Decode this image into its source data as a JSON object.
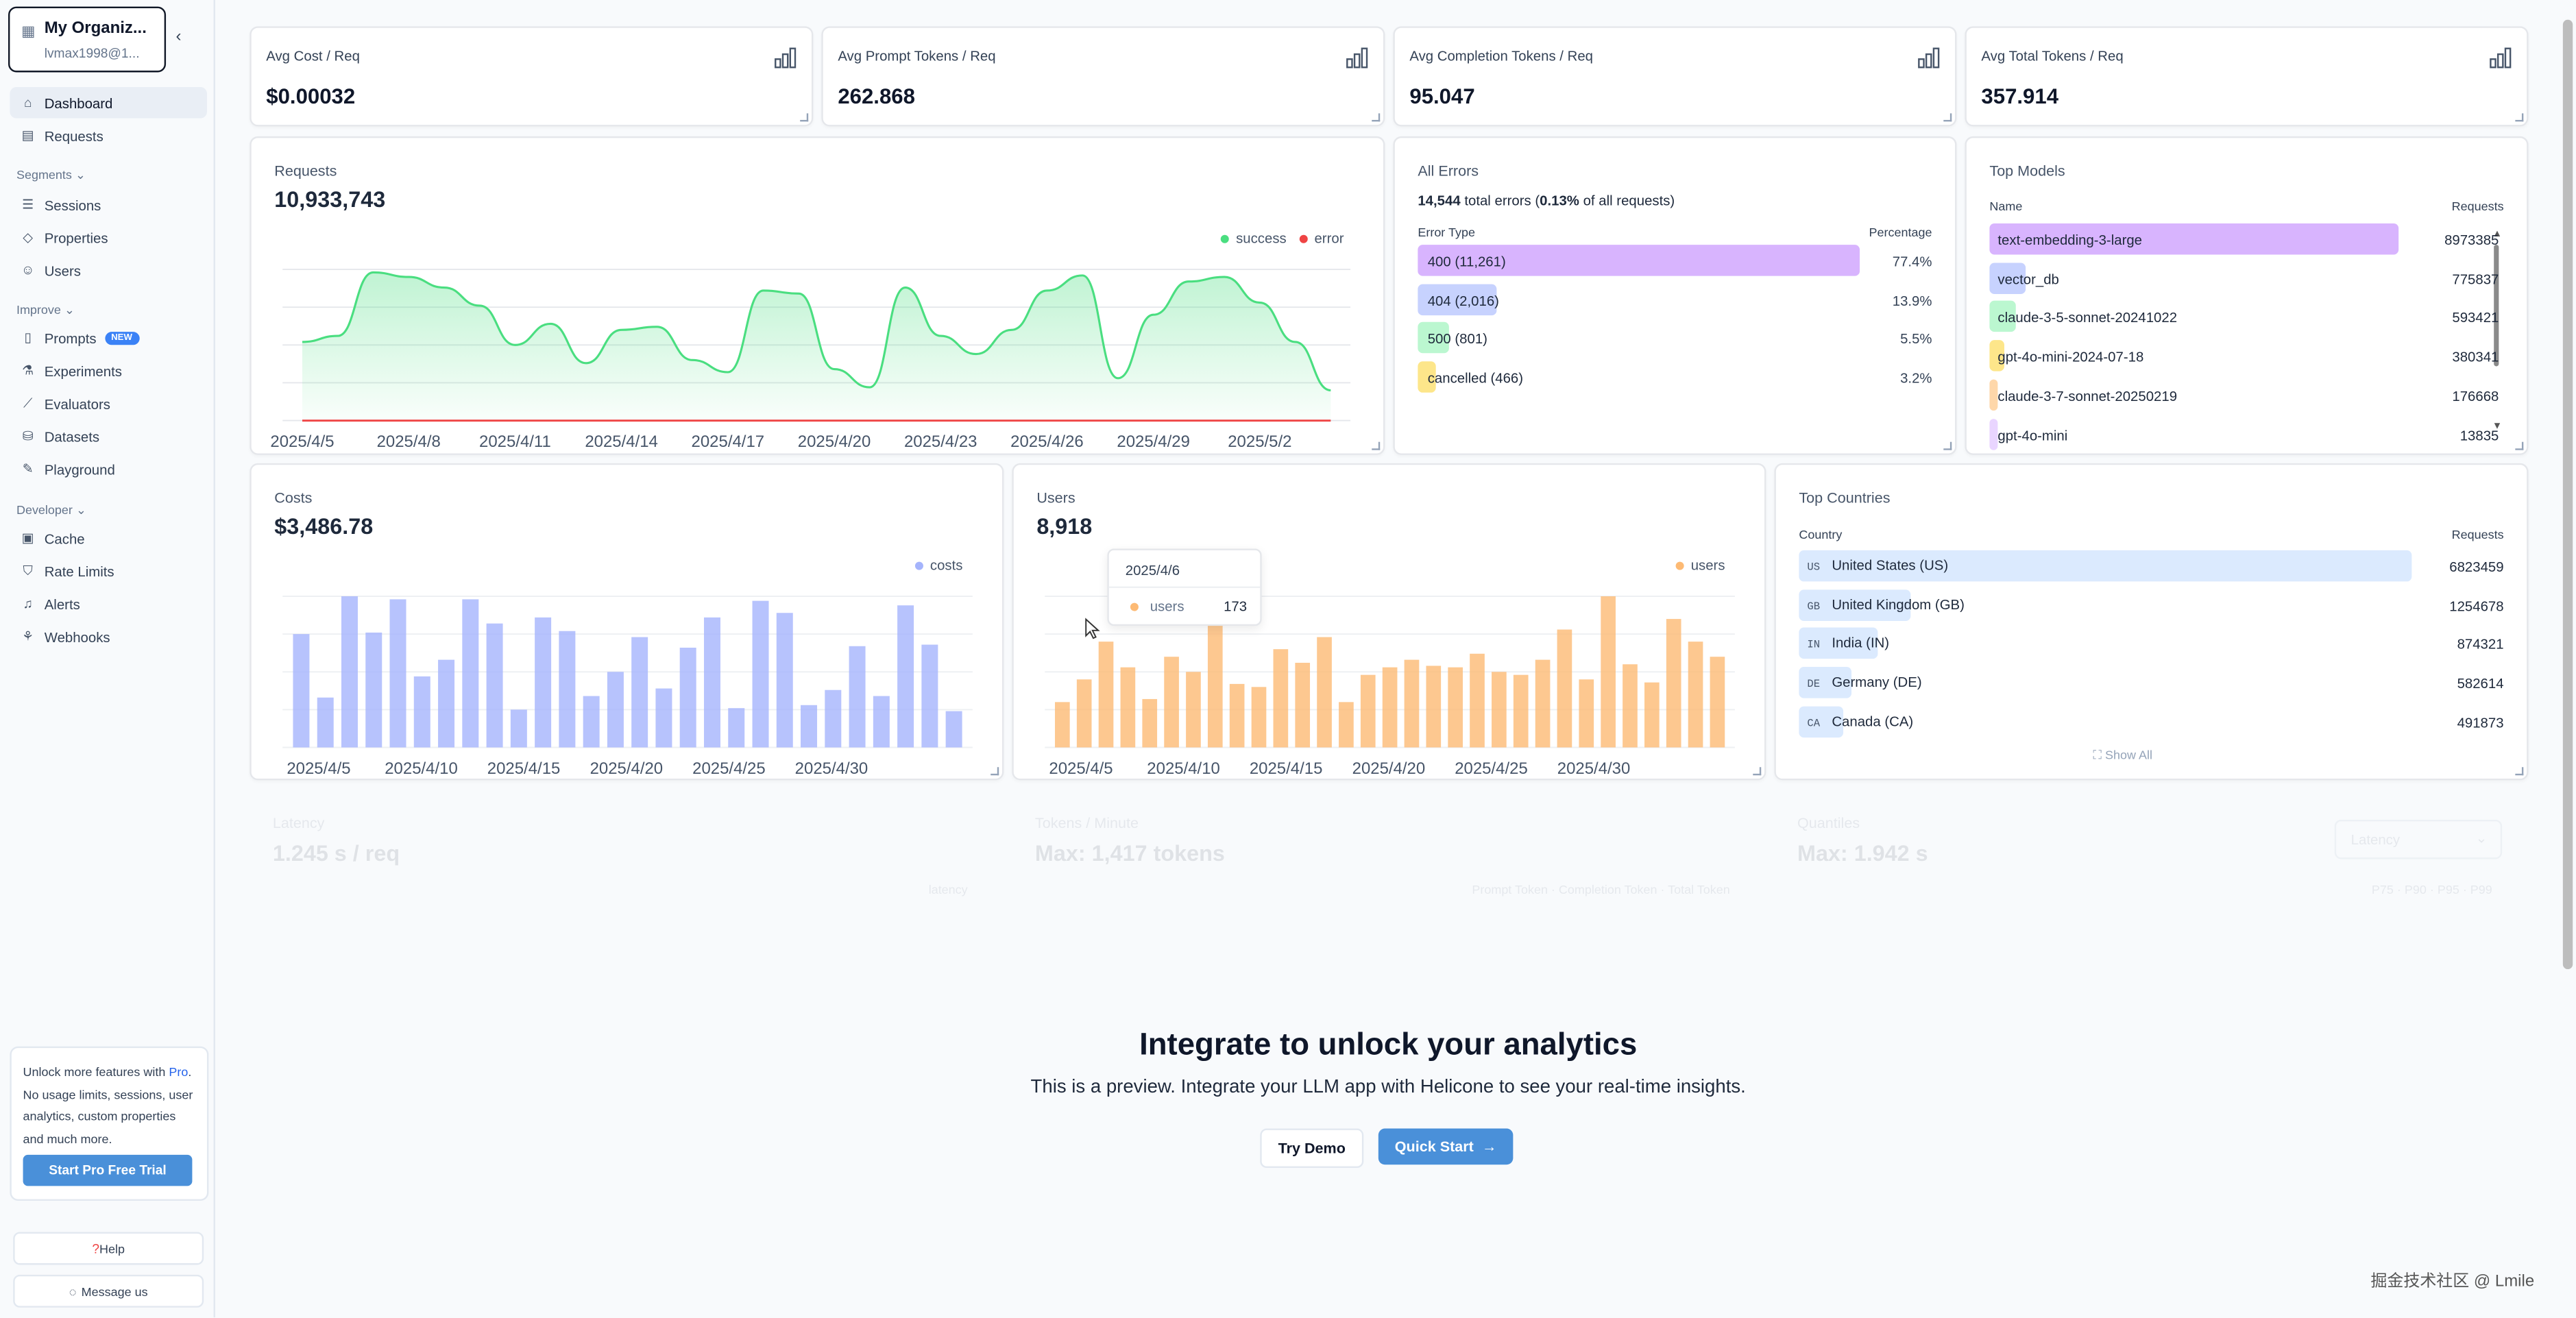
{
  "sidebar": {
    "org_name": "My Organiz...",
    "org_email": "lvmax1998@1...",
    "nav_top": [
      {
        "label": "Dashboard",
        "icon": "home-icon"
      },
      {
        "label": "Requests",
        "icon": "table-icon"
      }
    ],
    "segments_label": "Segments",
    "segments": [
      {
        "label": "Sessions",
        "icon": "list-icon"
      },
      {
        "label": "Properties",
        "icon": "tag-icon"
      },
      {
        "label": "Users",
        "icon": "user-icon"
      }
    ],
    "improve_label": "Improve",
    "improve": [
      {
        "label": "Prompts",
        "icon": "file-icon",
        "badge": "NEW"
      },
      {
        "label": "Experiments",
        "icon": "flask-icon"
      },
      {
        "label": "Evaluators",
        "icon": "chart-line-icon"
      },
      {
        "label": "Datasets",
        "icon": "database-icon"
      },
      {
        "label": "Playground",
        "icon": "pencil-icon"
      }
    ],
    "developer_label": "Developer",
    "developer": [
      {
        "label": "Cache",
        "icon": "archive-icon"
      },
      {
        "label": "Rate Limits",
        "icon": "shield-icon"
      },
      {
        "label": "Alerts",
        "icon": "bell-icon"
      },
      {
        "label": "Webhooks",
        "icon": "webhook-icon"
      }
    ],
    "promo_pre": "Unlock more features with ",
    "promo_link": "Pro",
    "promo_post": ". No usage limits, sessions, user analytics, custom properties and much more.",
    "promo_button": "Start Pro Free Trial",
    "help": "Help",
    "message": "Message us"
  },
  "stats": [
    {
      "label": "Avg Cost / Req",
      "value": "$0.00032"
    },
    {
      "label": "Avg Prompt Tokens / Req",
      "value": "262.868"
    },
    {
      "label": "Avg Completion Tokens / Req",
      "value": "95.047"
    },
    {
      "label": "Avg Total Tokens / Req",
      "value": "357.914"
    }
  ],
  "requests": {
    "title": "Requests",
    "value": "10,933,743",
    "legend_success": "success",
    "legend_error": "error"
  },
  "errors": {
    "title": "All Errors",
    "summary_count": "14,544",
    "summary_mid": " total errors (",
    "summary_pct": "0.13%",
    "summary_end": " of all requests)",
    "col_type": "Error Type",
    "col_pct": "Percentage",
    "rows": [
      {
        "label": "400 (11,261)",
        "pct": "77.4%",
        "color": "#d8b4fe"
      },
      {
        "label": "404 (2,016)",
        "pct": "13.9%",
        "color": "#c7d2fe"
      },
      {
        "label": "500 (801)",
        "pct": "5.5%",
        "color": "#bbf7d0"
      },
      {
        "label": "cancelled (466)",
        "pct": "3.2%",
        "color": "#fde68a"
      }
    ]
  },
  "models": {
    "title": "Top Models",
    "col_name": "Name",
    "col_req": "Requests",
    "rows": [
      {
        "name": "text-embedding-3-large",
        "value": "8973385",
        "color": "#d8b4fe"
      },
      {
        "name": "vector_db",
        "value": "775837",
        "color": "#c7d2fe"
      },
      {
        "name": "claude-3-5-sonnet-20241022",
        "value": "593421",
        "color": "#bbf7d0"
      },
      {
        "name": "gpt-4o-mini-2024-07-18",
        "value": "380341",
        "color": "#fde68a"
      },
      {
        "name": "claude-3-7-sonnet-20250219",
        "value": "176668",
        "color": "#fed7aa"
      },
      {
        "name": "gpt-4o-mini",
        "value": "13835",
        "color": "#e9d5ff"
      }
    ]
  },
  "costs": {
    "title": "Costs",
    "value": "$3,486.78",
    "legend": "costs"
  },
  "users": {
    "title": "Users",
    "value": "8,918",
    "legend": "users"
  },
  "tooltip": {
    "date": "2025/4/6",
    "label": "users",
    "value": "173"
  },
  "countries": {
    "title": "Top Countries",
    "col_country": "Country",
    "col_req": "Requests",
    "show_all": "Show All",
    "rows": [
      {
        "code": "US",
        "name": "United States (US)",
        "value": "6823459"
      },
      {
        "code": "GB",
        "name": "United Kingdom (GB)",
        "value": "1254678"
      },
      {
        "code": "IN",
        "name": "India (IN)",
        "value": "874321"
      },
      {
        "code": "DE",
        "name": "Germany (DE)",
        "value": "582614"
      },
      {
        "code": "CA",
        "name": "Canada (CA)",
        "value": "491873"
      }
    ]
  },
  "ghost": {
    "latency_title": "Latency",
    "latency_value": "1.245 s / req",
    "latency_legend": "latency",
    "tpm_title": "Tokens / Minute",
    "tpm_value": "Max: 1,417 tokens",
    "tpm_legend": "Prompt Token · Completion Token · Total Token",
    "quant_title": "Quantiles",
    "quant_value": "Max: 1.942 s",
    "quant_select": "Latency",
    "quant_legend": "P75 · P90 · P95 · P99"
  },
  "cta": {
    "heading": "Integrate to unlock your analytics",
    "text": "This is a preview. Integrate your LLM app with Helicone to see your real-time insights.",
    "demo": "Try Demo",
    "quickstart": "Quick Start"
  },
  "watermark": "掘金技术社区 @ Lmile",
  "colors": {
    "success": "#4ade80",
    "error": "#ef4444",
    "costs": "#a5b4fc",
    "users": "#fdba74",
    "accent": "#4a90d9"
  },
  "chart_data": [
    {
      "type": "line",
      "title": "Requests",
      "x": [
        "2025/4/5",
        "2025/4/6",
        "2025/4/7",
        "2025/4/8",
        "2025/4/9",
        "2025/4/10",
        "2025/4/11",
        "2025/4/12",
        "2025/4/13",
        "2025/4/14",
        "2025/4/15",
        "2025/4/16",
        "2025/4/17",
        "2025/4/18",
        "2025/4/19",
        "2025/4/20",
        "2025/4/21",
        "2025/4/22",
        "2025/4/23",
        "2025/4/24",
        "2025/4/25",
        "2025/4/26",
        "2025/4/27",
        "2025/4/28",
        "2025/4/29",
        "2025/4/30",
        "2025/5/1",
        "2025/5/2",
        "2025/5/3",
        "2025/5/4"
      ],
      "x_ticks": [
        "2025/4/5",
        "2025/4/8",
        "2025/4/11",
        "2025/4/14",
        "2025/4/17",
        "2025/4/20",
        "2025/4/23",
        "2025/4/26",
        "2025/4/29",
        "2025/5/2"
      ],
      "series": [
        {
          "name": "success",
          "values": [
            0.52,
            0.56,
            0.98,
            0.95,
            0.88,
            0.76,
            0.5,
            0.64,
            0.38,
            0.6,
            0.62,
            0.4,
            0.32,
            0.86,
            0.84,
            0.34,
            0.22,
            0.88,
            0.56,
            0.44,
            0.6,
            0.86,
            0.96,
            0.28,
            0.7,
            0.92,
            0.95,
            0.78,
            0.52,
            0.2
          ]
        },
        {
          "name": "error",
          "values": [
            0.01,
            0.01,
            0.01,
            0.01,
            0.01,
            0.01,
            0.01,
            0.01,
            0.01,
            0.01,
            0.01,
            0.01,
            0.01,
            0.01,
            0.01,
            0.01,
            0.01,
            0.01,
            0.01,
            0.01,
            0.01,
            0.01,
            0.01,
            0.01,
            0.01,
            0.01,
            0.01,
            0.01,
            0.01,
            0.01
          ]
        }
      ]
    },
    {
      "type": "bar",
      "title": "Costs",
      "x_ticks": [
        "2025/4/5",
        "2025/4/10",
        "2025/4/15",
        "2025/4/20",
        "2025/4/25",
        "2025/4/30"
      ],
      "series": [
        {
          "name": "costs",
          "values": [
            0.75,
            0.33,
            1.0,
            0.76,
            0.98,
            0.47,
            0.58,
            0.98,
            0.82,
            0.25,
            0.86,
            0.77,
            0.34,
            0.5,
            0.73,
            0.39,
            0.66,
            0.86,
            0.26,
            0.97,
            0.89,
            0.28,
            0.38,
            0.67,
            0.34,
            0.94,
            0.68,
            0.24
          ]
        }
      ]
    },
    {
      "type": "bar",
      "title": "Users",
      "x_ticks": [
        "2025/4/5",
        "2025/4/10",
        "2025/4/15",
        "2025/4/20",
        "2025/4/25",
        "2025/4/30"
      ],
      "series": [
        {
          "name": "users",
          "values": [
            0.3,
            0.45,
            0.7,
            0.53,
            0.32,
            0.6,
            0.5,
            0.88,
            0.42,
            0.4,
            0.65,
            0.56,
            0.73,
            0.3,
            0.48,
            0.53,
            0.58,
            0.54,
            0.53,
            0.62,
            0.5,
            0.48,
            0.58,
            0.78,
            0.45,
            1.0,
            0.55,
            0.43,
            0.85,
            0.7,
            0.6
          ]
        }
      ]
    }
  ]
}
